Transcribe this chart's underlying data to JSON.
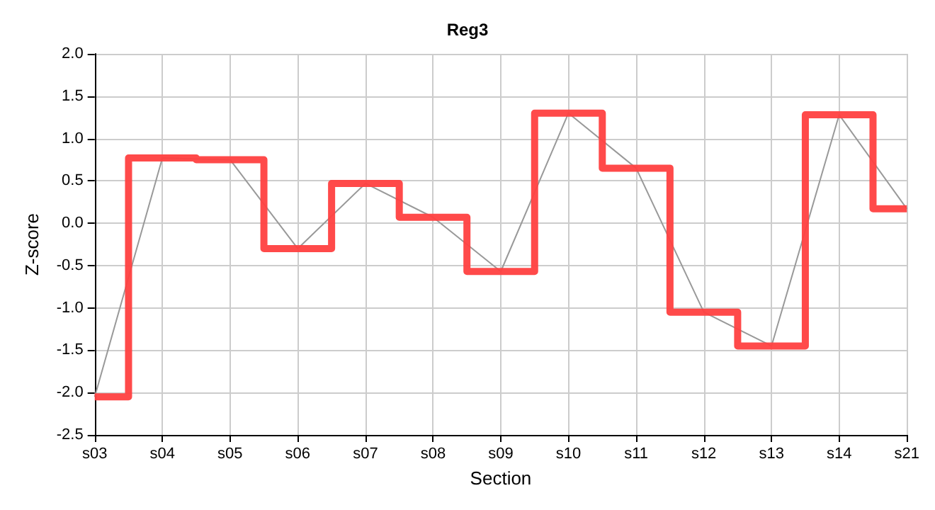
{
  "chart_data": {
    "type": "step",
    "title": "Reg3",
    "xlabel": "Section",
    "ylabel": "Z-score",
    "categories": [
      "s03",
      "s04",
      "s05",
      "s06",
      "s07",
      "s08",
      "s09",
      "s10",
      "s11",
      "s12",
      "s13",
      "s14",
      "s21"
    ],
    "series": [
      {
        "type": "line",
        "color": "#999999",
        "values": [
          -2.05,
          0.77,
          0.75,
          -0.3,
          0.47,
          0.07,
          -0.57,
          1.3,
          0.65,
          -1.05,
          -1.45,
          1.28,
          0.17
        ]
      },
      {
        "color": "#ff4040",
        "values": [
          -2.05,
          0.77,
          0.75,
          -0.3,
          0.47,
          0.07,
          -0.57,
          1.3,
          0.65,
          -1.05,
          -1.45,
          1.28,
          0.17
        ]
      }
    ],
    "ylim": [
      -2.5,
      2.0
    ],
    "yticks": [
      {
        "value": -2.5,
        "label": "-2.5"
      },
      {
        "value": -2,
        "label": "-2.0"
      },
      {
        "value": -1.5,
        "label": "-1.5"
      },
      {
        "value": -1,
        "label": "-1.0"
      },
      {
        "value": -0.5,
        "label": "-0.5"
      },
      {
        "value": 0,
        "label": "0.0"
      },
      {
        "value": 0.5,
        "label": "0.5"
      },
      {
        "value": 1,
        "label": "1.0"
      },
      {
        "value": 1.5,
        "label": "1.5"
      },
      {
        "value": 2,
        "label": "2.0"
      }
    ],
    "grid": true,
    "marker": "none"
  }
}
